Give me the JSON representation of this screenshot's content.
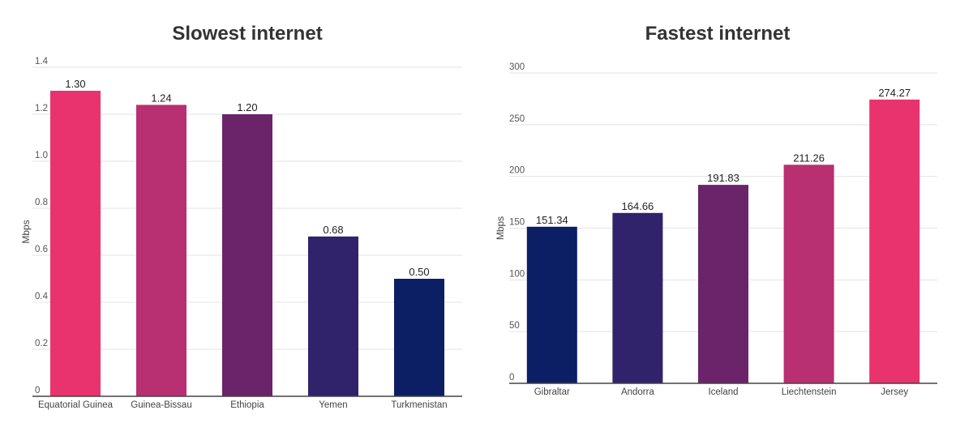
{
  "chart_data": [
    {
      "type": "bar",
      "title": "Slowest internet",
      "xlabel": "",
      "ylabel": "Mbps",
      "categories": [
        "Equatorial Guinea",
        "Guinea-Bissau",
        "Ethiopia",
        "Yemen",
        "Turkmenistan"
      ],
      "values": [
        1.3,
        1.24,
        1.2,
        0.68,
        0.5
      ],
      "value_labels": [
        "1.30",
        "1.24",
        "1.20",
        "0.68",
        "0.50"
      ],
      "colors": [
        "#e8336e",
        "#b83071",
        "#6b2469",
        "#30226b",
        "#0c1e64"
      ],
      "ylim": [
        0,
        1.4
      ],
      "yticks": [
        0,
        0.2,
        0.4,
        0.6,
        0.8,
        1.0,
        1.2,
        1.4
      ],
      "ytick_labels": [
        "0",
        "0.2",
        "0.4",
        "0.6",
        "0.8",
        "1.0",
        "1.2",
        "1.4"
      ],
      "grid": true,
      "legend": "none"
    },
    {
      "type": "bar",
      "title": "Fastest internet",
      "xlabel": "",
      "ylabel": "Mbps",
      "categories": [
        "Gibraltar",
        "Andorra",
        "Iceland",
        "Liechtenstein",
        "Jersey"
      ],
      "values": [
        151.34,
        164.66,
        191.83,
        211.26,
        274.27
      ],
      "value_labels": [
        "151.34",
        "164.66",
        "191.83",
        "211.26",
        "274.27"
      ],
      "colors": [
        "#0c1e64",
        "#30226b",
        "#6b2469",
        "#b83071",
        "#e8336e"
      ],
      "ylim": [
        0,
        300
      ],
      "yticks": [
        0,
        50,
        100,
        150,
        200,
        250,
        300
      ],
      "ytick_labels": [
        "0",
        "50",
        "100",
        "150",
        "200",
        "250",
        "300"
      ],
      "grid": true,
      "legend": "none"
    }
  ]
}
